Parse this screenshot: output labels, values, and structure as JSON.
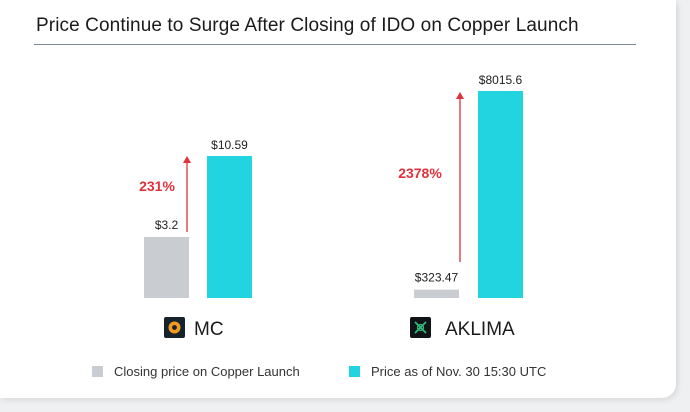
{
  "chart_data": {
    "type": "bar",
    "title": "Price Continue to Surge After Closing of IDO on Copper Launch",
    "panels": [
      {
        "category": "MC",
        "icon": "mc-logo-icon",
        "values": {
          "closing": 3.2,
          "current": 10.59
        },
        "labels": {
          "closing": "$3.2",
          "current": "$10.59"
        },
        "change_label": "231%"
      },
      {
        "category": "AKLIMA",
        "icon": "aklima-logo-icon",
        "values": {
          "closing": 323.47,
          "current": 8015.6
        },
        "labels": {
          "closing": "$323.47",
          "current": "$8015.6"
        },
        "change_label": "2378%"
      }
    ],
    "series": [
      {
        "name": "Closing price on Copper Launch",
        "key": "closing",
        "color": "#c9ccd1"
      },
      {
        "name": "Price as of Nov. 30 15:30 UTC",
        "key": "current",
        "color": "#22d3e0"
      }
    ],
    "arrow_color": "#e0323b",
    "change_label_color": "#e0323b",
    "legend_position": "bottom"
  }
}
